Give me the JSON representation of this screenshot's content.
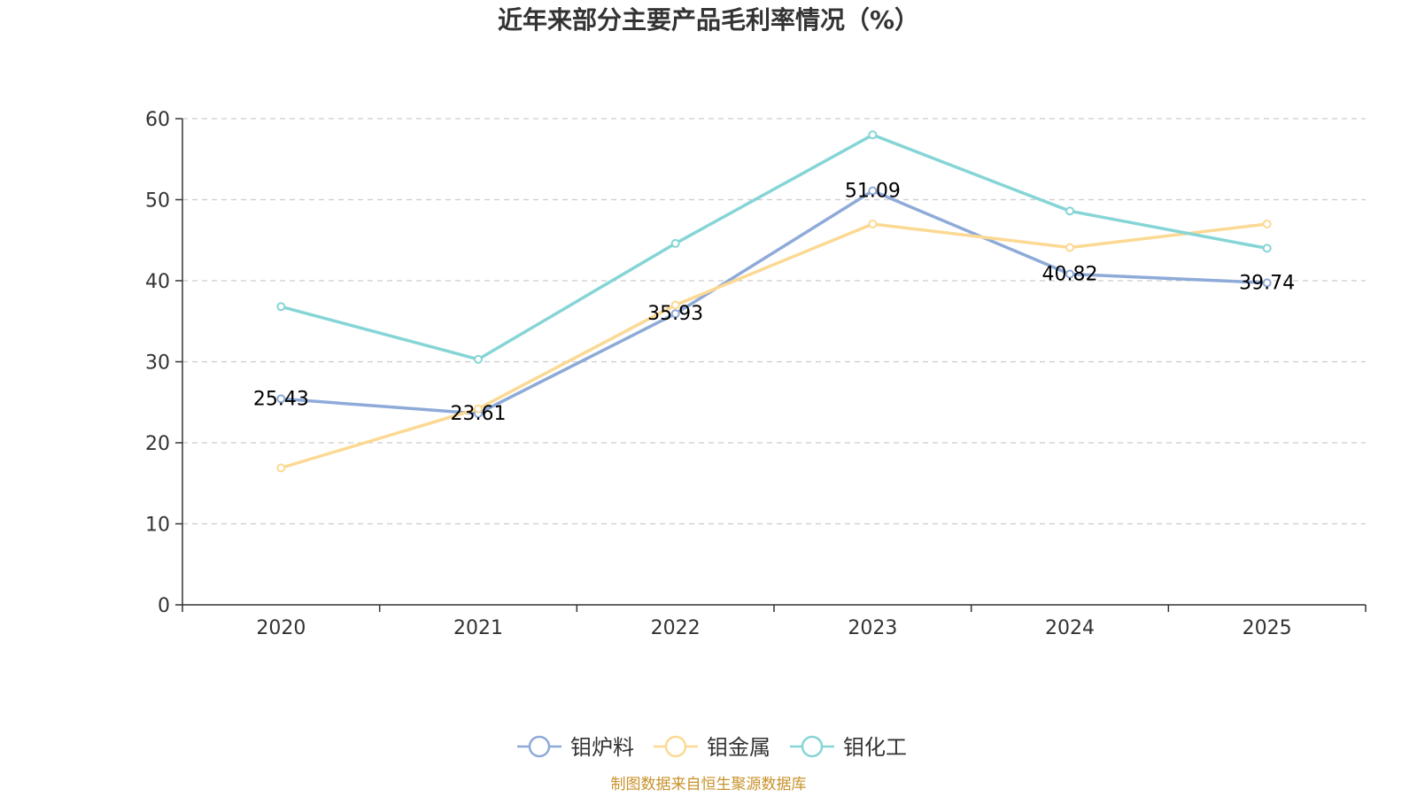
{
  "chart_data": {
    "type": "line",
    "title": "近年来部分主要产品毛利率情况（%）",
    "categories": [
      "2020",
      "2021",
      "2022",
      "2023",
      "2024",
      "2025"
    ],
    "ylim": [
      0,
      60
    ],
    "yticks": [
      "0",
      "10",
      "20",
      "30",
      "40",
      "50",
      "60"
    ],
    "grid": true,
    "legend_position": "bottom-center",
    "series": [
      {
        "name": "钼炉料",
        "color": "#8eaad8",
        "values": [
          25.43,
          23.61,
          35.93,
          51.09,
          40.82,
          39.74
        ],
        "labels": [
          "25.43",
          "23.61",
          "35.93",
          "51.09",
          "40.82",
          "39.74"
        ]
      },
      {
        "name": "钼金属",
        "color": "#fcd993",
        "values": [
          16.9,
          24.2,
          37.0,
          47.0,
          44.1,
          47.0
        ]
      },
      {
        "name": "钼化工",
        "color": "#86d5d6",
        "values": [
          36.8,
          30.3,
          44.6,
          58.0,
          48.6,
          44.0
        ]
      }
    ]
  },
  "source": {
    "text": "制图数据来自恒生聚源数据库",
    "color": "#c8922a"
  }
}
